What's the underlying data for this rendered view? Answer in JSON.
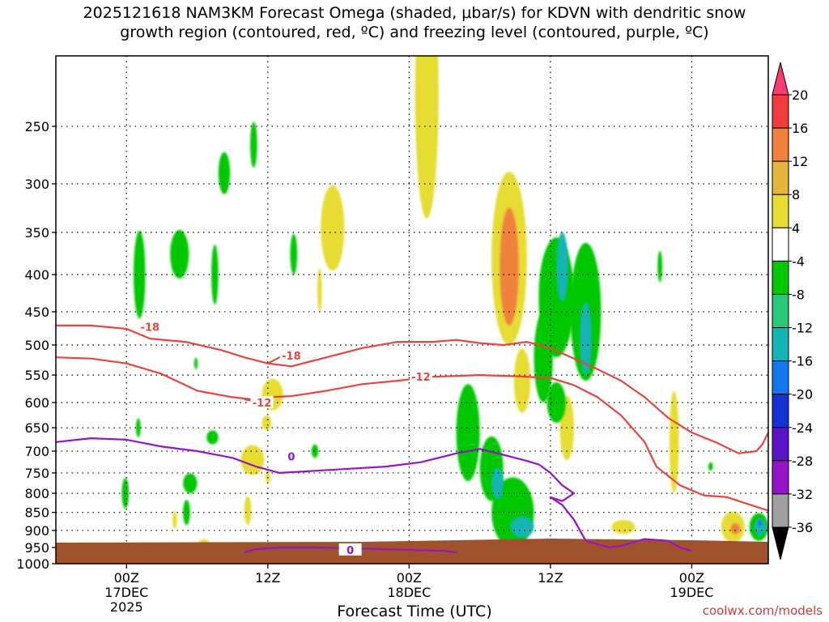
{
  "chart_data": {
    "type": "heatmap",
    "title": "2025121618 NAM3KM Forecast Omega (shaded, μbar/s) for KDVN with dendritic snow\ngrowth region (contoured, red, ºC) and freezing level (contoured, purple, ºC)",
    "xlabel": "Forecast Time (UTC)",
    "ylabel": "",
    "x_ticks": [
      {
        "label": "00Z",
        "sub": "17DEC",
        "sub2": "2025",
        "hour": 0
      },
      {
        "label": "12Z",
        "sub": "",
        "sub2": "",
        "hour": 12
      },
      {
        "label": "00Z",
        "sub": "18DEC",
        "sub2": "",
        "hour": 24
      },
      {
        "label": "12Z",
        "sub": "",
        "sub2": "",
        "hour": 36
      },
      {
        "label": "00Z",
        "sub": "19DEC",
        "sub2": "",
        "hour": 48
      }
    ],
    "xlim": [
      -6,
      54.5
    ],
    "y_levels": [
      250,
      300,
      350,
      400,
      450,
      500,
      550,
      600,
      650,
      700,
      750,
      800,
      850,
      900,
      950,
      1000
    ],
    "ylim": [
      200,
      1000
    ],
    "colorbar": {
      "labels": [
        "20",
        "16",
        "12",
        "8",
        "4",
        "-4",
        "-8",
        "-12",
        "-16",
        "-20",
        "-24",
        "-28",
        "-32",
        "-36"
      ],
      "colors": [
        "#ff3c70",
        "#f03c3c",
        "#f0823c",
        "#e6b43c",
        "#e6dc32",
        "#ffffff",
        "#00c800",
        "#28c878",
        "#14b4b4",
        "#1478f0",
        "#1432d2",
        "#5a14c8",
        "#9614c8",
        "#a0a0a0",
        "#000000"
      ]
    },
    "omega_features": [
      {
        "value": 10,
        "hour": 25.5,
        "p": 240,
        "dh": 0.8,
        "dp": 65
      },
      {
        "value": 6,
        "hour": 25.5,
        "p": 225,
        "dh": 1.0,
        "dp": 110
      },
      {
        "value": 6,
        "hour": 32.5,
        "p": 380,
        "dh": 1.5,
        "dp": 120
      },
      {
        "value": 12,
        "hour": 32.5,
        "p": 390,
        "dh": 0.8,
        "dp": 80
      },
      {
        "value": 6,
        "hour": 33.6,
        "p": 560,
        "dh": 0.7,
        "dp": 60
      },
      {
        "value": 6,
        "hour": 17.5,
        "p": 345,
        "dh": 1.0,
        "dp": 50
      },
      {
        "value": 6,
        "hour": 16.4,
        "p": 420,
        "dh": 0.2,
        "dp": 30
      },
      {
        "value": 6,
        "hour": 10.7,
        "p": 720,
        "dh": 1.0,
        "dp": 35
      },
      {
        "value": 6,
        "hour": 12.4,
        "p": 585,
        "dh": 0.9,
        "dp": 30
      },
      {
        "value": 6,
        "hour": 11.9,
        "p": 640,
        "dh": 0.4,
        "dp": 15
      },
      {
        "value": 6,
        "hour": 10.3,
        "p": 845,
        "dh": 0.3,
        "dp": 40
      },
      {
        "value": 6,
        "hour": 6.6,
        "p": 940,
        "dh": 0.5,
        "dp": 15
      },
      {
        "value": 6,
        "hour": 4.1,
        "p": 870,
        "dh": 0.2,
        "dp": 25
      },
      {
        "value": 6,
        "hour": 12.0,
        "p": 760,
        "dh": 0.2,
        "dp": 15
      },
      {
        "value": 6,
        "hour": 37.4,
        "p": 650,
        "dh": 0.6,
        "dp": 70
      },
      {
        "value": 6,
        "hour": 42.2,
        "p": 890,
        "dh": 1.0,
        "dp": 20
      },
      {
        "value": 6,
        "hour": 46.5,
        "p": 680,
        "dh": 0.4,
        "dp": 120
      },
      {
        "value": 6,
        "hour": 51.5,
        "p": 890,
        "dh": 1.0,
        "dp": 45
      },
      {
        "value": 12,
        "hour": 51.7,
        "p": 895,
        "dh": 0.4,
        "dp": 15
      },
      {
        "value": -6,
        "hour": 1.1,
        "p": 400,
        "dh": 0.5,
        "dp": 60
      },
      {
        "value": -6,
        "hour": 4.5,
        "p": 375,
        "dh": 0.8,
        "dp": 30
      },
      {
        "value": -6,
        "hour": 7.5,
        "p": 400,
        "dh": 0.3,
        "dp": 40
      },
      {
        "value": -6,
        "hour": 8.3,
        "p": 290,
        "dh": 0.5,
        "dp": 20
      },
      {
        "value": -6,
        "hour": 10.8,
        "p": 265,
        "dh": 0.3,
        "dp": 20
      },
      {
        "value": -6,
        "hour": 14.2,
        "p": 375,
        "dh": 0.3,
        "dp": 25
      },
      {
        "value": -6,
        "hour": 5.9,
        "p": 530,
        "dh": 0.15,
        "dp": 10
      },
      {
        "value": -6,
        "hour": 1.0,
        "p": 650,
        "dh": 0.2,
        "dp": 20
      },
      {
        "value": -6,
        "hour": 7.3,
        "p": 670,
        "dh": 0.5,
        "dp": 15
      },
      {
        "value": -6,
        "hour": 5.4,
        "p": 775,
        "dh": 0.6,
        "dp": 25
      },
      {
        "value": -6,
        "hour": 5.1,
        "p": 850,
        "dh": 0.3,
        "dp": 35
      },
      {
        "value": -6,
        "hour": -0.1,
        "p": 800,
        "dh": 0.3,
        "dp": 40
      },
      {
        "value": -6,
        "hour": 16.0,
        "p": 700,
        "dh": 0.3,
        "dp": 15
      },
      {
        "value": -6,
        "hour": 29.0,
        "p": 660,
        "dh": 1.0,
        "dp": 110
      },
      {
        "value": -6,
        "hour": 31.0,
        "p": 740,
        "dh": 1.0,
        "dp": 80
      },
      {
        "value": -6,
        "hour": 32.8,
        "p": 850,
        "dh": 1.8,
        "dp": 100
      },
      {
        "value": -12,
        "hour": 31.5,
        "p": 775,
        "dh": 0.5,
        "dp": 40
      },
      {
        "value": -12,
        "hour": 33.6,
        "p": 890,
        "dh": 1.0,
        "dp": 30
      },
      {
        "value": -6,
        "hour": 36.5,
        "p": 430,
        "dh": 1.5,
        "dp": 90
      },
      {
        "value": -6,
        "hour": 35.4,
        "p": 520,
        "dh": 0.8,
        "dp": 80
      },
      {
        "value": -12,
        "hour": 37.0,
        "p": 390,
        "dh": 0.5,
        "dp": 45
      },
      {
        "value": -6,
        "hour": 39.0,
        "p": 450,
        "dh": 1.3,
        "dp": 110
      },
      {
        "value": -12,
        "hour": 39.0,
        "p": 490,
        "dh": 0.5,
        "dp": 60
      },
      {
        "value": -6,
        "hour": 36.5,
        "p": 600,
        "dh": 0.8,
        "dp": 40
      },
      {
        "value": -6,
        "hour": 45.3,
        "p": 390,
        "dh": 0.2,
        "dp": 20
      },
      {
        "value": -6,
        "hour": 28.1,
        "p": 945,
        "dh": 0.5,
        "dp": 10
      },
      {
        "value": -6,
        "hour": 49.6,
        "p": 735,
        "dh": 0.2,
        "dp": 10
      },
      {
        "value": -6,
        "hour": 53.7,
        "p": 890,
        "dh": 0.8,
        "dp": 40
      },
      {
        "value": -12,
        "hour": 53.8,
        "p": 890,
        "dh": 0.5,
        "dp": 25
      },
      {
        "value": -16,
        "hour": 53.8,
        "p": 880,
        "dh": 0.15,
        "dp": 10
      }
    ],
    "contours": [
      {
        "name": "dgz-top",
        "label": "-18",
        "color": "#e8463c",
        "points": [
          [
            -6,
            470
          ],
          [
            -3,
            470
          ],
          [
            0,
            475
          ],
          [
            2,
            490
          ],
          [
            5,
            495
          ],
          [
            8,
            508
          ],
          [
            10,
            520
          ],
          [
            12,
            530
          ],
          [
            14,
            535
          ],
          [
            17,
            520
          ],
          [
            20,
            505
          ],
          [
            23,
            495
          ],
          [
            26,
            495
          ],
          [
            28,
            492
          ],
          [
            30,
            497
          ],
          [
            32,
            500
          ],
          [
            34,
            495
          ],
          [
            36,
            505
          ],
          [
            38,
            522
          ],
          [
            40,
            540
          ],
          [
            42,
            560
          ],
          [
            44,
            590
          ],
          [
            46,
            630
          ],
          [
            48,
            660
          ],
          [
            50,
            680
          ],
          [
            52,
            705
          ],
          [
            53.5,
            700
          ],
          [
            54,
            685
          ],
          [
            54.5,
            660
          ]
        ],
        "label_hour": 2,
        "label_p": 472
      },
      {
        "name": "dgz-mid",
        "label": "-18",
        "color": "#e8463c",
        "points": [
          [
            12,
            530
          ],
          [
            13,
            520
          ],
          [
            14,
            517
          ]
        ],
        "label_hour": 14,
        "label_p": 517
      },
      {
        "name": "dgz-bottom",
        "label": "-12",
        "color": "#e8463c",
        "points": [
          [
            -6,
            520
          ],
          [
            -3,
            522
          ],
          [
            0,
            530
          ],
          [
            3,
            548
          ],
          [
            6,
            578
          ],
          [
            9,
            590
          ],
          [
            11,
            595
          ],
          [
            12,
            590
          ],
          [
            14,
            588
          ],
          [
            17,
            578
          ],
          [
            20,
            566
          ],
          [
            23,
            560
          ],
          [
            26,
            553
          ],
          [
            30,
            550
          ],
          [
            33,
            552
          ],
          [
            36,
            555
          ],
          [
            38,
            568
          ],
          [
            40,
            590
          ],
          [
            42,
            625
          ],
          [
            44,
            680
          ],
          [
            45,
            735
          ],
          [
            47,
            780
          ],
          [
            49,
            805
          ],
          [
            51,
            810
          ],
          [
            53,
            830
          ],
          [
            54.5,
            845
          ]
        ],
        "label_hour": 25,
        "label_p": 553
      },
      {
        "name": "dgz-bottom-label",
        "label": "-12",
        "color": "#e8463c",
        "points": [
          [
            10,
            594
          ],
          [
            11,
            598
          ]
        ],
        "label_hour": 11.5,
        "label_p": 600
      },
      {
        "name": "freezing-level",
        "label": "0",
        "color": "#9614c8",
        "points": [
          [
            -6,
            680
          ],
          [
            -3,
            672
          ],
          [
            0,
            675
          ],
          [
            3,
            690
          ],
          [
            6,
            700
          ],
          [
            9,
            715
          ],
          [
            11,
            735
          ],
          [
            13,
            750
          ],
          [
            16,
            745
          ],
          [
            19,
            740
          ],
          [
            22,
            735
          ],
          [
            25,
            725
          ],
          [
            28,
            705
          ],
          [
            30,
            695
          ],
          [
            32,
            708
          ],
          [
            34,
            722
          ],
          [
            35,
            730
          ],
          [
            36,
            750
          ],
          [
            37,
            780
          ],
          [
            38,
            800
          ],
          [
            37,
            820
          ],
          [
            36,
            810
          ],
          [
            37,
            830
          ],
          [
            38,
            870
          ],
          [
            39,
            930
          ],
          [
            41,
            950
          ],
          [
            42,
            945
          ],
          [
            44,
            925
          ],
          [
            46,
            930
          ],
          [
            47,
            950
          ],
          [
            48,
            960
          ]
        ],
        "label_hour": 14,
        "label_p": 712
      },
      {
        "name": "freezing-level-bottom",
        "label": "0",
        "color": "#9614c8",
        "points": [
          [
            10,
            965
          ],
          [
            11,
            955
          ],
          [
            13,
            950
          ],
          [
            16,
            950
          ],
          [
            19,
            952
          ],
          [
            22,
            955
          ],
          [
            25,
            958
          ],
          [
            27,
            960
          ],
          [
            28,
            965
          ]
        ],
        "label_hour": 19,
        "label_p": 957
      }
    ],
    "ground_color": "#a0522d"
  },
  "credit": "coolwx.com/models"
}
